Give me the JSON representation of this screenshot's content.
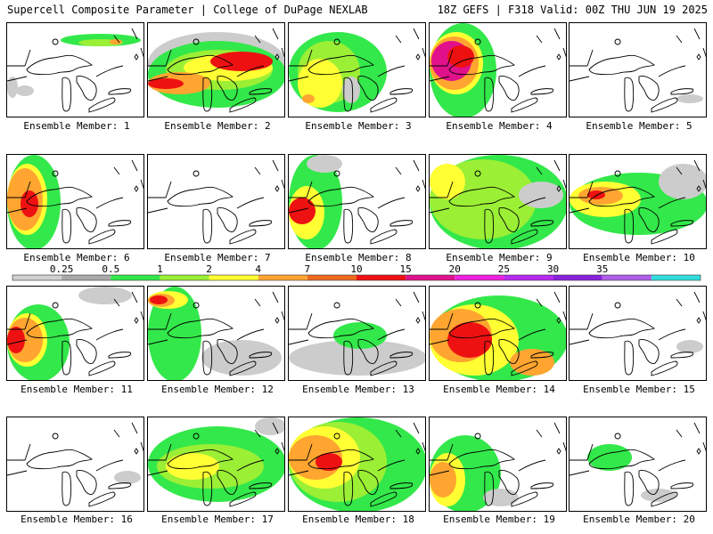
{
  "header": {
    "title_left": "Supercell Composite Parameter | College of DuPage NEXLAB",
    "title_right": "18Z GEFS | F318 Valid: 00Z THU JUN 19 2025"
  },
  "colorbar": {
    "levels": [
      "0.25",
      "0.5",
      "1",
      "2",
      "4",
      "7",
      "10",
      "15",
      "20",
      "25",
      "30",
      "35"
    ],
    "colors": [
      "#d0d0d0",
      "#aaaaaa",
      "#33e84a",
      "#9bef35",
      "#ffff33",
      "#ffa530",
      "#f06a20",
      "#ee1111",
      "#e0118a",
      "#ee22dd",
      "#b82af0",
      "#8822dd",
      "#b05fe8",
      "#33dddd"
    ]
  },
  "members": [
    {
      "id": 1,
      "label": "Ensemble Member: 1"
    },
    {
      "id": 2,
      "label": "Ensemble Member: 2"
    },
    {
      "id": 3,
      "label": "Ensemble Member: 3"
    },
    {
      "id": 4,
      "label": "Ensemble Member: 4"
    },
    {
      "id": 5,
      "label": "Ensemble Member: 5"
    },
    {
      "id": 6,
      "label": "Ensemble Member: 6"
    },
    {
      "id": 7,
      "label": "Ensemble Member: 7"
    },
    {
      "id": 8,
      "label": "Ensemble Member: 8"
    },
    {
      "id": 9,
      "label": "Ensemble Member: 9"
    },
    {
      "id": 10,
      "label": "Ensemble Member: 10"
    },
    {
      "id": 11,
      "label": "Ensemble Member: 11"
    },
    {
      "id": 12,
      "label": "Ensemble Member: 12"
    },
    {
      "id": 13,
      "label": "Ensemble Member: 13"
    },
    {
      "id": 14,
      "label": "Ensemble Member: 14"
    },
    {
      "id": 15,
      "label": "Ensemble Member: 15"
    },
    {
      "id": 16,
      "label": "Ensemble Member: 16"
    },
    {
      "id": 17,
      "label": "Ensemble Member: 17"
    },
    {
      "id": 18,
      "label": "Ensemble Member: 18"
    },
    {
      "id": 19,
      "label": "Ensemble Member: 19"
    },
    {
      "id": 20,
      "label": "Ensemble Member: 20"
    }
  ]
}
